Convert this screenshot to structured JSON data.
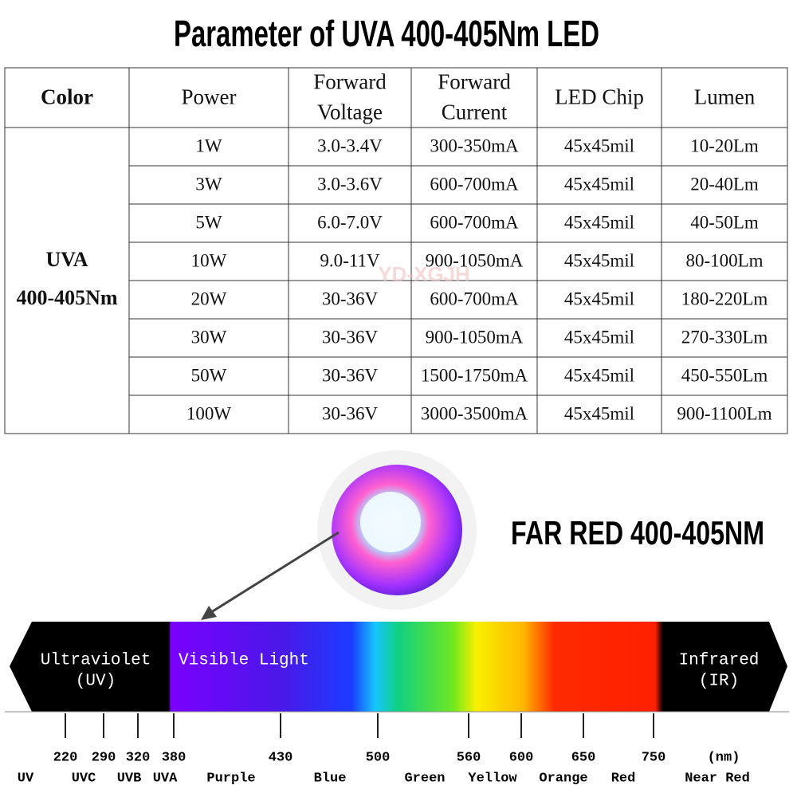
{
  "title": "Parameter of UVA  400-405Nm LED",
  "table": {
    "header": [
      [
        "Color"
      ],
      [
        "Power"
      ],
      [
        "Forward",
        "Voltage"
      ],
      [
        "Forward",
        "Current"
      ],
      [
        "LED Chip"
      ],
      [
        "Lumen"
      ]
    ],
    "color_cell": [
      "UVA",
      "400-405Nm"
    ],
    "rows": [
      [
        "1W",
        "3.0-3.4V",
        "300-350mA",
        "45x45mil",
        "10-20Lm"
      ],
      [
        "3W",
        "3.0-3.6V",
        "600-700mA",
        "45x45mil",
        "20-40Lm"
      ],
      [
        "5W",
        "6.0-7.0V",
        "600-700mA",
        "45x45mil",
        "40-50Lm"
      ],
      [
        "10W",
        "9.0-11V",
        "900-1050mA",
        "45x45mil",
        "80-100Lm"
      ],
      [
        "20W",
        "30-36V",
        "600-700mA",
        "45x45mil",
        "180-220Lm"
      ],
      [
        "30W",
        "30-36V",
        "900-1050mA",
        "45x45mil",
        "270-330Lm"
      ],
      [
        "50W",
        "30-36V",
        "1500-1750mA",
        "45x45mil",
        "450-550Lm"
      ],
      [
        "100W",
        "30-36V",
        "3000-3500mA",
        "45x45mil",
        "900-1100Lm"
      ]
    ]
  },
  "watermark": "YD-XGJH",
  "led_label": "FAR RED 400-405NM",
  "spectrum": {
    "regions": [
      [
        "Ultraviolet",
        "(UV)"
      ],
      [
        "Visible Light"
      ],
      [
        "Infrared",
        "(IR)"
      ]
    ],
    "ticks": [
      "220",
      "290",
      "320",
      "380",
      "430",
      "500",
      "560",
      "600",
      "650",
      "750"
    ],
    "unit": "(nm)",
    "names": [
      "UV",
      "UVC",
      "UVB",
      "UVA",
      "Purple",
      "Blue",
      "Green",
      "Yellow",
      "Orange",
      "Red",
      "Near Red"
    ]
  }
}
